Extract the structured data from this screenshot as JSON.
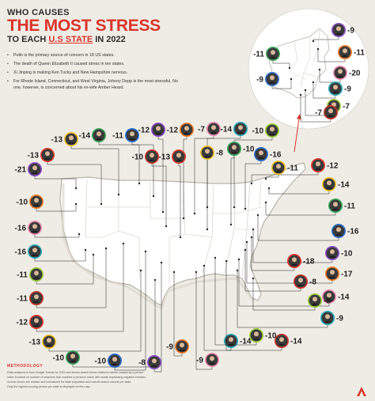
{
  "header": {
    "supertitle": "WHO CAUSES",
    "title": "THE MOST STRESS",
    "subtitle_pre": "TO EACH ",
    "subtitle_hl": "U.S STATE",
    "subtitle_post": " IN 2022"
  },
  "bullets": [
    "Putin is the primary source of concern in 18 US states.",
    "The death of Queen Elizabeth II caused stress in ten states.",
    "Xi Jinping is making Ken Tucky and New Hampshire nervous.",
    "For Rhode Island, Connecticut, and West Virginia, Johnny Depp is the most stressful. No one, however, is concerned about his ex-wife Amber Heard."
  ],
  "methodology": {
    "title": "METHODOLOGY",
    "lines": [
      "Data analyzed is from Google Trends for 2022 and shows search terms related to stress caused by a person.",
      "Index is based on number of searches that combine a person's name with words expressing negative emotion.",
      "Scores shown are relative and normalized for state population and overall search volume per state.",
      "Only the highest-scoring person per state is displayed on the map."
    ]
  },
  "colors": {
    "accent": "#d9352b",
    "map_fill": "#ffffff",
    "inset_fill": "#ffffff",
    "background": "#efece6",
    "ring_palette": [
      "#e63b2e",
      "#f2c12e",
      "#3aa657",
      "#2f6fd1",
      "#8a4bc7",
      "#ef7d2a",
      "#f08bb3",
      "#29a8b5",
      "#9bcf3a",
      "#c8342a"
    ]
  },
  "chart_data": {
    "type": "table",
    "title": "WHO CAUSES THE MOST STRESS TO EACH U.S STATE IN 2022",
    "unit": "stress score",
    "callouts": [
      {
        "value": -13
      },
      {
        "value": -13
      },
      {
        "value": -14
      },
      {
        "value": -11
      },
      {
        "value": -12
      },
      {
        "value": -12
      },
      {
        "value": -7
      },
      {
        "value": -14
      },
      {
        "value": -10
      },
      {
        "value": -10
      },
      {
        "value": -13
      },
      {
        "value": -8
      },
      {
        "value": -10
      },
      {
        "value": -16
      },
      {
        "value": -21
      },
      {
        "value": -10
      },
      {
        "value": -16
      },
      {
        "value": -16
      },
      {
        "value": -11
      },
      {
        "value": -11
      },
      {
        "value": -12
      },
      {
        "value": -13
      },
      {
        "value": -10
      },
      {
        "value": -10
      },
      {
        "value": -8
      },
      {
        "value": -9
      },
      {
        "value": -9
      },
      {
        "value": -14
      },
      {
        "value": -10
      },
      {
        "value": -14
      },
      {
        "value": -12
      },
      {
        "value": -14
      },
      {
        "value": -11
      },
      {
        "value": -16
      },
      {
        "value": -10
      },
      {
        "value": -17
      },
      {
        "value": -14
      },
      {
        "value": -9
      },
      {
        "value": -8
      },
      {
        "value": -8
      },
      {
        "value": -18
      },
      {
        "value": -11
      },
      {
        "value": -11
      },
      {
        "value": -9
      },
      {
        "value": -9
      },
      {
        "value": -11
      },
      {
        "value": -20
      },
      {
        "value": -9
      },
      {
        "value": -7
      },
      {
        "value": -7
      }
    ]
  }
}
